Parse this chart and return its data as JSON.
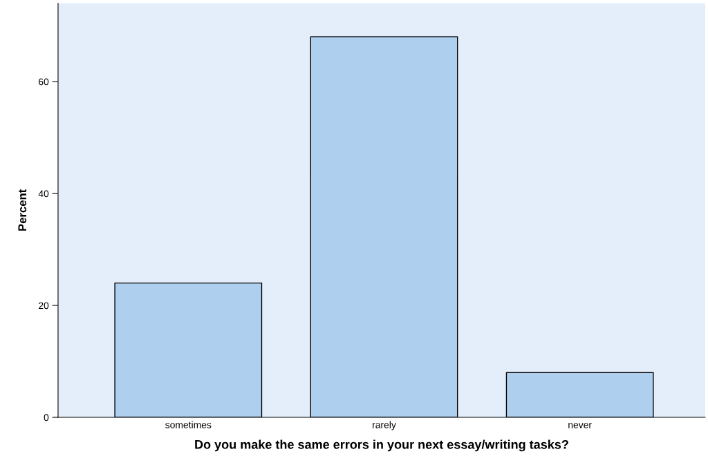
{
  "chart_data": {
    "type": "bar",
    "xlabel": "Do you make the same errors in your next essay/writing tasks?",
    "ylabel": "Percent",
    "categories": [
      "sometimes",
      "rarely",
      "never"
    ],
    "values": [
      24,
      68,
      8
    ],
    "color": "#aecfee",
    "ylim": [
      0,
      74
    ],
    "yticks": [
      0,
      20,
      40,
      60
    ],
    "grid": false,
    "legend": false
  }
}
